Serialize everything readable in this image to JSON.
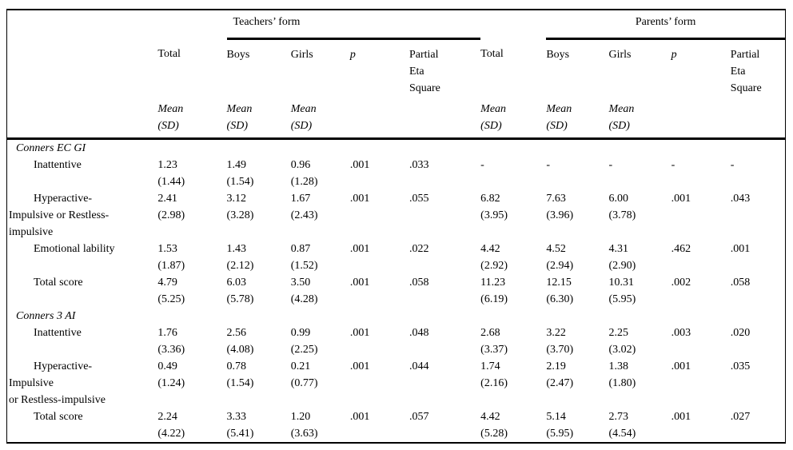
{
  "table": {
    "group_headers": [
      "Teachers’ form",
      "Parents’ form"
    ],
    "columns": [
      "Total",
      "Boys",
      "Girls",
      "p",
      "Partial\nEta\nSquare",
      "Total",
      "Boys",
      "Girls",
      "p",
      "Partial\nEta\nSquare"
    ],
    "subheader": "Mean\n(SD)",
    "line_color": "#000000",
    "background_color": "#ffffff",
    "rows": [
      {
        "type": "section",
        "label": "Conners EC GI"
      },
      {
        "type": "data",
        "label_lines": [
          "Inattentive"
        ],
        "cells": [
          [
            "1.23",
            "(1.44)"
          ],
          [
            "1.49",
            "(1.54)"
          ],
          [
            "0.96",
            "(1.28)"
          ],
          [
            ".001",
            ""
          ],
          [
            ".033",
            ""
          ],
          [
            "-",
            ""
          ],
          [
            "-",
            ""
          ],
          [
            "-",
            ""
          ],
          [
            "-",
            ""
          ],
          [
            "-",
            ""
          ]
        ]
      },
      {
        "type": "data",
        "label_lines": [
          "Hyperactive-",
          "Impulsive or Restless-",
          "impulsive"
        ],
        "cells": [
          [
            "2.41",
            "(2.98)"
          ],
          [
            "3.12",
            "(3.28)"
          ],
          [
            "1.67",
            "(2.43)"
          ],
          [
            ".001",
            ""
          ],
          [
            ".055",
            ""
          ],
          [
            "6.82",
            "(3.95)"
          ],
          [
            "7.63",
            "(3.96)"
          ],
          [
            "6.00",
            "(3.78)"
          ],
          [
            ".001",
            ""
          ],
          [
            ".043",
            ""
          ]
        ]
      },
      {
        "type": "data",
        "label_lines": [
          "Emotional lability"
        ],
        "cells": [
          [
            "1.53",
            "(1.87)"
          ],
          [
            "1.43",
            "(2.12)"
          ],
          [
            "0.87",
            "(1.52)"
          ],
          [
            ".001",
            ""
          ],
          [
            ".022",
            ""
          ],
          [
            "4.42",
            "(2.92)"
          ],
          [
            "4.52",
            "(2.94)"
          ],
          [
            "4.31",
            "(2.90)"
          ],
          [
            ".462",
            ""
          ],
          [
            ".001",
            ""
          ]
        ]
      },
      {
        "type": "data",
        "label_lines": [
          "Total score"
        ],
        "cells": [
          [
            "4.79",
            "(5.25)"
          ],
          [
            "6.03",
            "(5.78)"
          ],
          [
            "3.50",
            "(4.28)"
          ],
          [
            ".001",
            ""
          ],
          [
            ".058",
            ""
          ],
          [
            "11.23",
            "(6.19)"
          ],
          [
            "12.15",
            "(6.30)"
          ],
          [
            "10.31",
            "(5.95)"
          ],
          [
            ".002",
            ""
          ],
          [
            ".058",
            ""
          ]
        ]
      },
      {
        "type": "section",
        "label": "Conners 3 AI"
      },
      {
        "type": "data",
        "label_lines": [
          "Inattentive"
        ],
        "cells": [
          [
            "1.76",
            "(3.36)"
          ],
          [
            "2.56",
            "(4.08)"
          ],
          [
            "0.99",
            "(2.25)"
          ],
          [
            ".001",
            ""
          ],
          [
            ".048",
            ""
          ],
          [
            "2.68",
            "(3.37)"
          ],
          [
            "3.22",
            "(3.70)"
          ],
          [
            "2.25",
            "(3.02)"
          ],
          [
            ".003",
            ""
          ],
          [
            ".020",
            ""
          ]
        ]
      },
      {
        "type": "data",
        "label_lines": [
          "Hyperactive-",
          "Impulsive",
          "or Restless-impulsive"
        ],
        "cells": [
          [
            "0.49",
            "(1.24)"
          ],
          [
            "0.78",
            "(1.54)"
          ],
          [
            "0.21",
            "(0.77)"
          ],
          [
            ".001",
            ""
          ],
          [
            ".044",
            ""
          ],
          [
            "1.74",
            "(2.16)"
          ],
          [
            "2.19",
            "(2.47)"
          ],
          [
            "1.38",
            "(1.80)"
          ],
          [
            ".001",
            ""
          ],
          [
            ".035",
            ""
          ]
        ]
      },
      {
        "type": "data",
        "label_lines": [
          "Total score"
        ],
        "cells": [
          [
            "2.24",
            "(4.22)"
          ],
          [
            "3.33",
            "(5.41)"
          ],
          [
            "1.20",
            "(3.63)"
          ],
          [
            ".001",
            ""
          ],
          [
            ".057",
            ""
          ],
          [
            "4.42",
            "(5.28)"
          ],
          [
            "5.14",
            "(5.95)"
          ],
          [
            "2.73",
            "(4.54)"
          ],
          [
            ".001",
            ""
          ],
          [
            ".027",
            ""
          ]
        ]
      }
    ]
  }
}
